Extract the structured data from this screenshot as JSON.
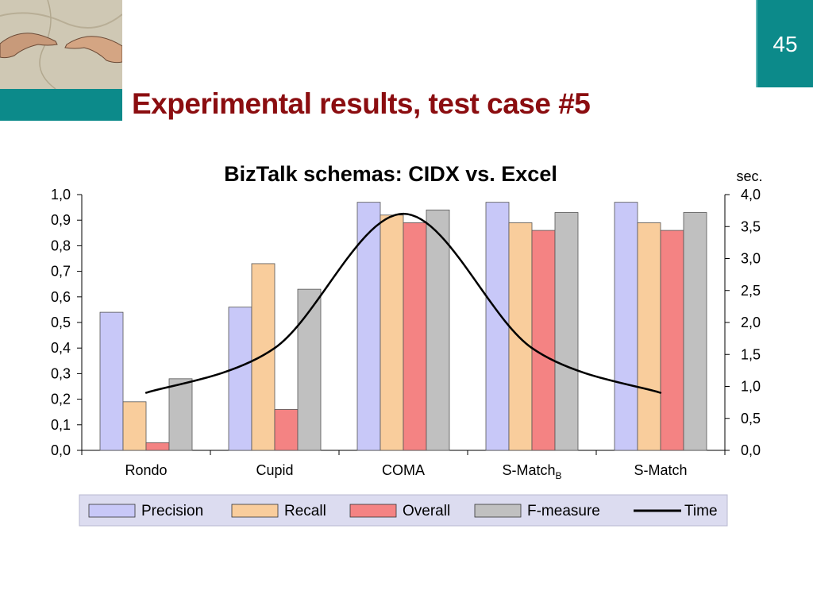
{
  "slide": {
    "title": "Experimental results, test case #5",
    "page_number": "45",
    "accent_color": "#0c8a8a",
    "title_color": "#8b0d10"
  },
  "logo": {
    "icon": "creation-of-adam-hands-icon"
  },
  "chart_data": {
    "type": "bar",
    "title": "BizTalk schemas: CIDX vs. Excel",
    "categories": [
      "Rondo",
      "Cupid",
      "COMA",
      "S-MatchB",
      "S-Match"
    ],
    "category_labels": [
      {
        "text": "Rondo",
        "sub": ""
      },
      {
        "text": "Cupid",
        "sub": ""
      },
      {
        "text": "COMA",
        "sub": ""
      },
      {
        "text": "S-Match",
        "sub": "B"
      },
      {
        "text": "S-Match",
        "sub": ""
      }
    ],
    "ylim": [
      0,
      1.0
    ],
    "yticks": [
      "0,0",
      "0,1",
      "0,2",
      "0,3",
      "0,4",
      "0,5",
      "0,6",
      "0,7",
      "0,8",
      "0,9",
      "1,0"
    ],
    "y2label": "sec.",
    "y2lim": [
      0,
      4.0
    ],
    "y2ticks": [
      "0,0",
      "0,5",
      "1,0",
      "1,5",
      "2,0",
      "2,5",
      "3,0",
      "3,5",
      "4,0"
    ],
    "series": [
      {
        "name": "Precision",
        "type": "bar",
        "color": "#c8c8f8",
        "values": [
          0.54,
          0.56,
          0.97,
          0.97,
          0.97
        ]
      },
      {
        "name": "Recall",
        "type": "bar",
        "color": "#f9cd9c",
        "values": [
          0.19,
          0.73,
          0.92,
          0.89,
          0.89
        ]
      },
      {
        "name": "Overall",
        "type": "bar",
        "color": "#f48383",
        "values": [
          0.03,
          0.16,
          0.89,
          0.86,
          0.86
        ]
      },
      {
        "name": "F-measure",
        "type": "bar",
        "color": "#c0c0c0",
        "values": [
          0.28,
          0.63,
          0.94,
          0.93,
          0.93
        ]
      },
      {
        "name": "Time",
        "type": "line",
        "axis": "right",
        "color": "#000000",
        "values": [
          0.9,
          1.6,
          3.7,
          1.6,
          0.9
        ]
      }
    ],
    "legend_position": "bottom",
    "legend_background": "#dcdcf0",
    "grid": false
  }
}
